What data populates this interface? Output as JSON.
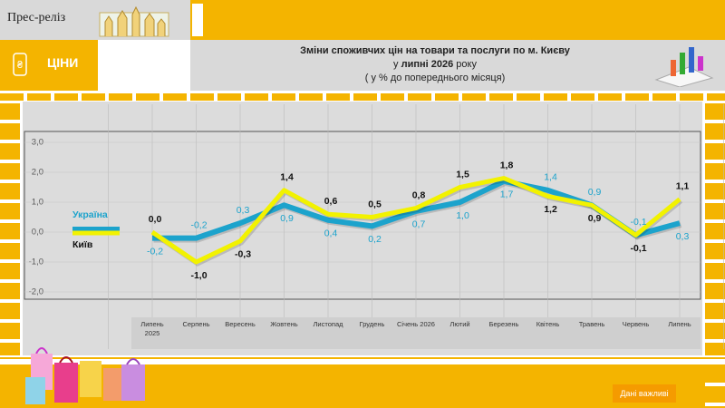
{
  "header": {
    "badge": "Прес-реліз",
    "section": "ЦІНИ",
    "footer_button": "Дані важливі"
  },
  "chart_data": {
    "type": "line",
    "title": "Зміни споживчих цін на товари та послуги по м. Києву",
    "subtitle_pre": "у",
    "subtitle_bold": "липні 2026",
    "subtitle_post": "року",
    "note": "( у  % до попереднього місяця)",
    "categories": [
      "Липень 2025",
      "Серпень",
      "Вересень",
      "Жовтень",
      "Листопад",
      "Грудень",
      "Січень 2026",
      "Лютий",
      "Березень",
      "Квітень",
      "Травень",
      "Червень",
      "Липень"
    ],
    "series": [
      {
        "name": "Україна",
        "color": "#1ca3cc",
        "values": [
          -0.2,
          -0.2,
          0.3,
          0.9,
          0.4,
          0.2,
          0.7,
          1.0,
          1.7,
          1.4,
          0.9,
          -0.1,
          0.3
        ],
        "value_labels": [
          "-0,2",
          "-0,2",
          "0,3",
          "0,9",
          "0,4",
          "0,2",
          "0,7",
          "1,0",
          "1,7",
          "1,4",
          "0,9",
          "-0,1",
          "0,3"
        ]
      },
      {
        "name": "Київ",
        "color": "#f2f200",
        "values": [
          0.0,
          -1.0,
          -0.3,
          1.4,
          0.6,
          0.5,
          0.8,
          1.5,
          1.8,
          1.2,
          0.9,
          -0.1,
          1.1
        ],
        "value_labels": [
          "0,0",
          "-1,0",
          "-0,3",
          "1,4",
          "0,6",
          "0,5",
          "0,8",
          "1,5",
          "1,8",
          "1,2",
          "0,9",
          "-0,1",
          "1,1"
        ]
      }
    ],
    "ylim": [
      -2.0,
      3.0
    ],
    "yticks": [
      {
        "value": -2,
        "label": "-2,0"
      },
      {
        "value": -1,
        "label": "-1,0"
      },
      {
        "value": 0,
        "label": "0,0"
      },
      {
        "value": 1,
        "label": "1,0"
      },
      {
        "value": 2,
        "label": "2,0"
      },
      {
        "value": 3,
        "label": "3,0"
      }
    ],
    "grid": true
  }
}
